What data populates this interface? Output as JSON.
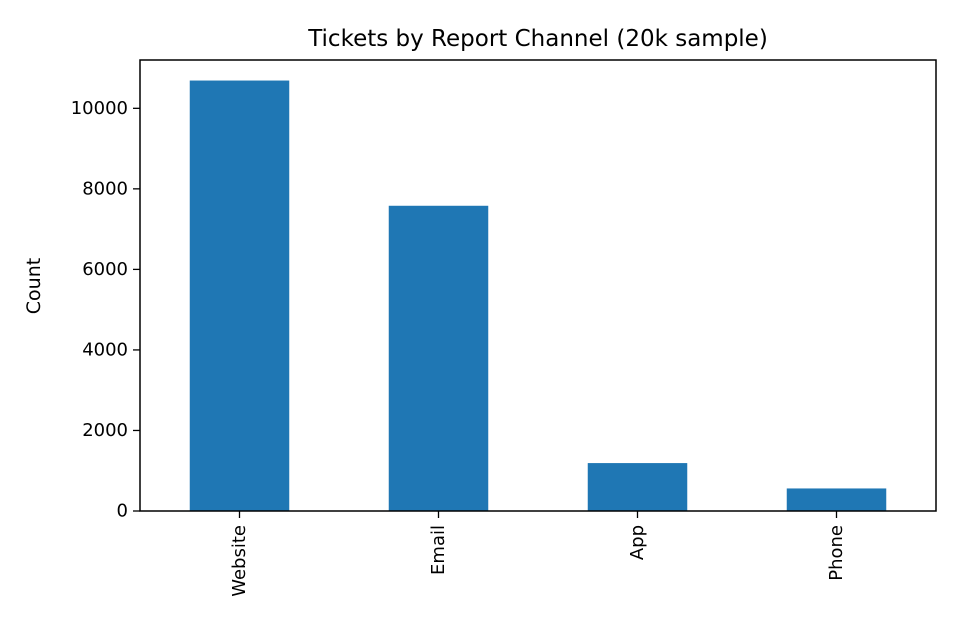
{
  "chart_data": {
    "type": "bar",
    "title": "Tickets by Report Channel (20k sample)",
    "xlabel": "",
    "ylabel": "Count",
    "categories": [
      "Website",
      "Email",
      "App",
      "Phone"
    ],
    "values": [
      10690,
      7580,
      1190,
      560
    ],
    "ylim": [
      0,
      11200
    ],
    "yticks": [
      0,
      2000,
      4000,
      6000,
      8000,
      10000
    ],
    "grid": false,
    "legend": "none",
    "bar_color": "#1f77b4"
  }
}
